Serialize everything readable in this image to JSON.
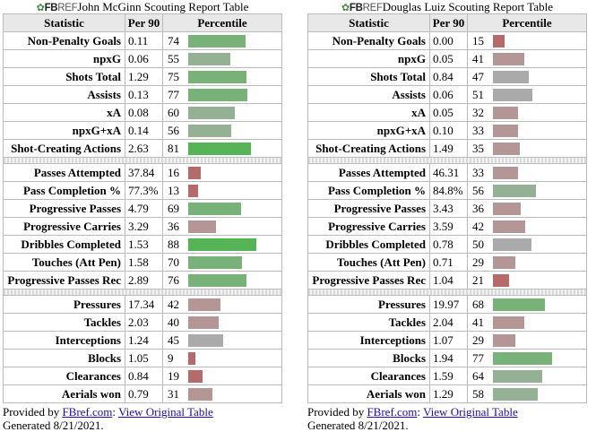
{
  "colors": {
    "strong_green": "#56b356",
    "green": "#79b279",
    "light_green": "#95b195",
    "gray": "#aaaaaa",
    "pink_gray": "#b49696",
    "red": "#b56b6b"
  },
  "tables": [
    {
      "logo": {
        "leaf": "✿",
        "fb": "FB",
        "ref": "REF"
      },
      "title": "John McGinn Scouting Report Table",
      "headers": {
        "stat": "Statistic",
        "per90": "Per 90",
        "pct": "Percentile"
      },
      "groups": [
        [
          {
            "stat": "Non-Penalty Goals",
            "per90": "0.11",
            "pct": 74
          },
          {
            "stat": "npxG",
            "per90": "0.06",
            "pct": 55
          },
          {
            "stat": "Shots Total",
            "per90": "1.29",
            "pct": 75
          },
          {
            "stat": "Assists",
            "per90": "0.13",
            "pct": 77
          },
          {
            "stat": "xA",
            "per90": "0.08",
            "pct": 60
          },
          {
            "stat": "npxG+xA",
            "per90": "0.14",
            "pct": 56
          },
          {
            "stat": "Shot-Creating Actions",
            "per90": "2.63",
            "pct": 81
          }
        ],
        [
          {
            "stat": "Passes Attempted",
            "per90": "37.84",
            "pct": 16
          },
          {
            "stat": "Pass Completion %",
            "per90": "77.3%",
            "pct": 13
          },
          {
            "stat": "Progressive Passes",
            "per90": "4.79",
            "pct": 69
          },
          {
            "stat": "Progressive Carries",
            "per90": "3.29",
            "pct": 36
          },
          {
            "stat": "Dribbles Completed",
            "per90": "1.53",
            "pct": 88
          },
          {
            "stat": "Touches (Att Pen)",
            "per90": "1.58",
            "pct": 70
          },
          {
            "stat": "Progressive Passes Rec",
            "per90": "2.89",
            "pct": 76
          }
        ],
        [
          {
            "stat": "Pressures",
            "per90": "17.34",
            "pct": 42
          },
          {
            "stat": "Tackles",
            "per90": "2.03",
            "pct": 40
          },
          {
            "stat": "Interceptions",
            "per90": "1.24",
            "pct": 45
          },
          {
            "stat": "Blocks",
            "per90": "1.05",
            "pct": 9
          },
          {
            "stat": "Clearances",
            "per90": "0.84",
            "pct": 19
          },
          {
            "stat": "Aerials won",
            "per90": "0.79",
            "pct": 31
          }
        ]
      ],
      "footer": {
        "provided_by": "Provided by ",
        "link1": "FBref.com",
        "colon": ": ",
        "link2": "View Original Table",
        "generated": "Generated 8/21/2021."
      }
    },
    {
      "logo": {
        "leaf": "✿",
        "fb": "FB",
        "ref": "REF"
      },
      "title": "Douglas Luiz Scouting Report Table",
      "headers": {
        "stat": "Statistic",
        "per90": "Per 90",
        "pct": "Percentile"
      },
      "groups": [
        [
          {
            "stat": "Non-Penalty Goals",
            "per90": "0.00",
            "pct": 15
          },
          {
            "stat": "npxG",
            "per90": "0.05",
            "pct": 41
          },
          {
            "stat": "Shots Total",
            "per90": "0.84",
            "pct": 47
          },
          {
            "stat": "Assists",
            "per90": "0.06",
            "pct": 51
          },
          {
            "stat": "xA",
            "per90": "0.05",
            "pct": 32
          },
          {
            "stat": "npxG+xA",
            "per90": "0.10",
            "pct": 33
          },
          {
            "stat": "Shot-Creating Actions",
            "per90": "1.49",
            "pct": 35
          }
        ],
        [
          {
            "stat": "Passes Attempted",
            "per90": "46.31",
            "pct": 33
          },
          {
            "stat": "Pass Completion %",
            "per90": "84.8%",
            "pct": 56
          },
          {
            "stat": "Progressive Passes",
            "per90": "3.43",
            "pct": 36
          },
          {
            "stat": "Progressive Carries",
            "per90": "3.59",
            "pct": 42
          },
          {
            "stat": "Dribbles Completed",
            "per90": "0.78",
            "pct": 50
          },
          {
            "stat": "Touches (Att Pen)",
            "per90": "0.71",
            "pct": 29
          },
          {
            "stat": "Progressive Passes Rec",
            "per90": "1.04",
            "pct": 21
          }
        ],
        [
          {
            "stat": "Pressures",
            "per90": "19.97",
            "pct": 68
          },
          {
            "stat": "Tackles",
            "per90": "2.04",
            "pct": 41
          },
          {
            "stat": "Interceptions",
            "per90": "1.07",
            "pct": 29
          },
          {
            "stat": "Blocks",
            "per90": "1.94",
            "pct": 77
          },
          {
            "stat": "Clearances",
            "per90": "1.59",
            "pct": 64
          },
          {
            "stat": "Aerials won",
            "per90": "1.29",
            "pct": 58
          }
        ]
      ],
      "footer": {
        "provided_by": "Provided by ",
        "link1": "FBref.com",
        "colon": ": ",
        "link2": "View Original Table",
        "generated": "Generated 8/21/2021."
      }
    }
  ]
}
